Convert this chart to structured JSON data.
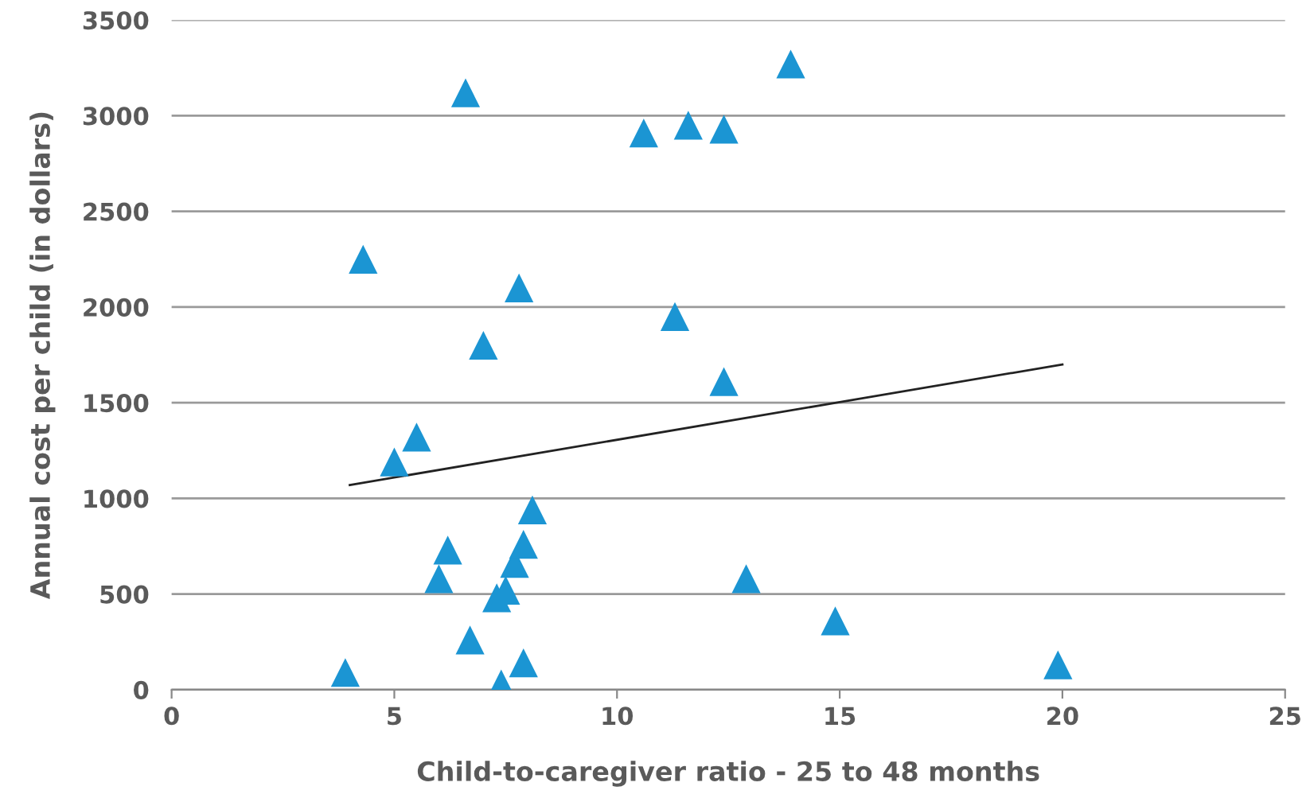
{
  "chart_data": {
    "type": "scatter",
    "xlabel": "Child-to-caregiver ratio - 25 to 48 months",
    "ylabel": "Annual cost per child (in dollars)",
    "xlim": [
      0,
      25
    ],
    "xticks": [
      0,
      5,
      10,
      15,
      20,
      25
    ],
    "ylim": [
      0,
      3500
    ],
    "yticks": [
      0,
      500,
      1000,
      1500,
      2000,
      2500,
      3000,
      3500
    ],
    "grid": "y",
    "series": [
      {
        "color": "#1b95d3",
        "marker": "triangle",
        "x": [
          3.9,
          4.3,
          5.0,
          5.5,
          6.0,
          6.2,
          6.6,
          6.7,
          7.0,
          7.4,
          7.3,
          7.5,
          7.7,
          7.8,
          7.9,
          7.9,
          8.1,
          10.6,
          11.3,
          11.6,
          12.4,
          12.4,
          12.9,
          13.9,
          14.9,
          19.9
        ],
        "values": [
          90,
          2250,
          1190,
          1320,
          580,
          730,
          3120,
          260,
          1800,
          30,
          480,
          520,
          660,
          2100,
          760,
          140,
          940,
          2910,
          1950,
          2950,
          2930,
          1610,
          580,
          3270,
          360,
          130
        ]
      },
      {
        "type": "line",
        "color": "#222222",
        "marker": "none",
        "x": [
          4,
          20
        ],
        "values": [
          1070,
          1700
        ]
      }
    ]
  }
}
